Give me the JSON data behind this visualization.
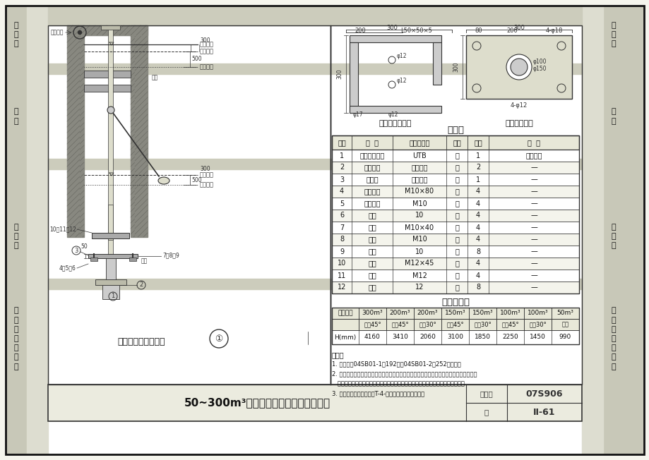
{
  "bg_color": "#f0f0e8",
  "page_bg": "#ffffff",
  "border_color": "#333333",
  "title_main": "50~300m³保温水塔浮筒式液位计安装图",
  "atlas_no": "07S906",
  "page_no": "II-61",
  "diagram_title": "浮筒式液位计安装图",
  "support_title": "安装支架大样图",
  "plate_title": "安装板大样图",
  "material_table_title": "材料表",
  "size_table_title": "尺寸选用表",
  "material_headers": [
    "编号",
    "名  称",
    "型号及规格",
    "单位",
    "数量",
    "备  注"
  ],
  "material_rows": [
    [
      "1",
      "浮筒式液位计",
      "UTB",
      "台",
      "1",
      "螺纹安装"
    ],
    [
      "2",
      "安装支架",
      "见大样图",
      "个",
      "2",
      "—"
    ],
    [
      "3",
      "安装板",
      "见大样图",
      "块",
      "1",
      "—"
    ],
    [
      "4",
      "膨胀螺栓",
      "M10×80",
      "个",
      "4",
      "—"
    ],
    [
      "5",
      "六角螺母",
      "M10",
      "个",
      "4",
      "—"
    ],
    [
      "6",
      "垫圈",
      "10",
      "个",
      "4",
      "—"
    ],
    [
      "7",
      "螺栓",
      "M10×40",
      "个",
      "4",
      "—"
    ],
    [
      "8",
      "螺母",
      "M10",
      "个",
      "4",
      "—"
    ],
    [
      "9",
      "垫圈",
      "10",
      "个",
      "8",
      "—"
    ],
    [
      "10",
      "螺栓",
      "M12×45",
      "个",
      "4",
      "—"
    ],
    [
      "11",
      "螺母",
      "M12",
      "个",
      "4",
      "—"
    ],
    [
      "12",
      "垫圈",
      "12",
      "个",
      "8",
      "—"
    ]
  ],
  "sz_headers_row1": [
    "水槽规格",
    "300m³",
    "200m³",
    "200m³",
    "150m³",
    "150m³",
    "100m³",
    "100m³",
    "50m³"
  ],
  "sz_headers_row2": [
    "",
    "倾角45°",
    "倾角45°",
    "倾角30°",
    "倾角45°",
    "倾角30°",
    "倾角45°",
    "倾角30°",
    "预制"
  ],
  "size_row_label": "H(mm)",
  "size_values": [
    "4160",
    "3410",
    "2060",
    "3100",
    "1850",
    "2250",
    "1450",
    "990"
  ],
  "notes_title": "说明：",
  "notes": [
    "1. 本图根据04SB01-1第192页和04SB01-2第252页绘制。",
    "2. 浮筒式液位控制器选型，由选用本图集的设计单位根据给水工艺及实际情况要求，确定与",
    "   选择有关的输出信号、显示方式、运行电压等有关参数，并负责确定控制器型号。",
    "3. 液位控制器安装在事迟T-4-一款，以便维护、检修。"
  ],
  "left_sections": [
    [
      8,
      90,
      "蓄\n水\n池"
    ],
    [
      105,
      225,
      "水\n塔"
    ],
    [
      275,
      395,
      "化\n粪\n池"
    ],
    [
      420,
      540,
      "小\n型\n排\n水\n构\n筑\n物"
    ]
  ],
  "right_sections": [
    [
      8,
      90,
      "蓄\n水\n池"
    ],
    [
      105,
      225,
      "水\n塔"
    ],
    [
      275,
      395,
      "化\n粪\n池"
    ],
    [
      420,
      540,
      "小\n型\n排\n水\n构\n筑\n物"
    ]
  ]
}
